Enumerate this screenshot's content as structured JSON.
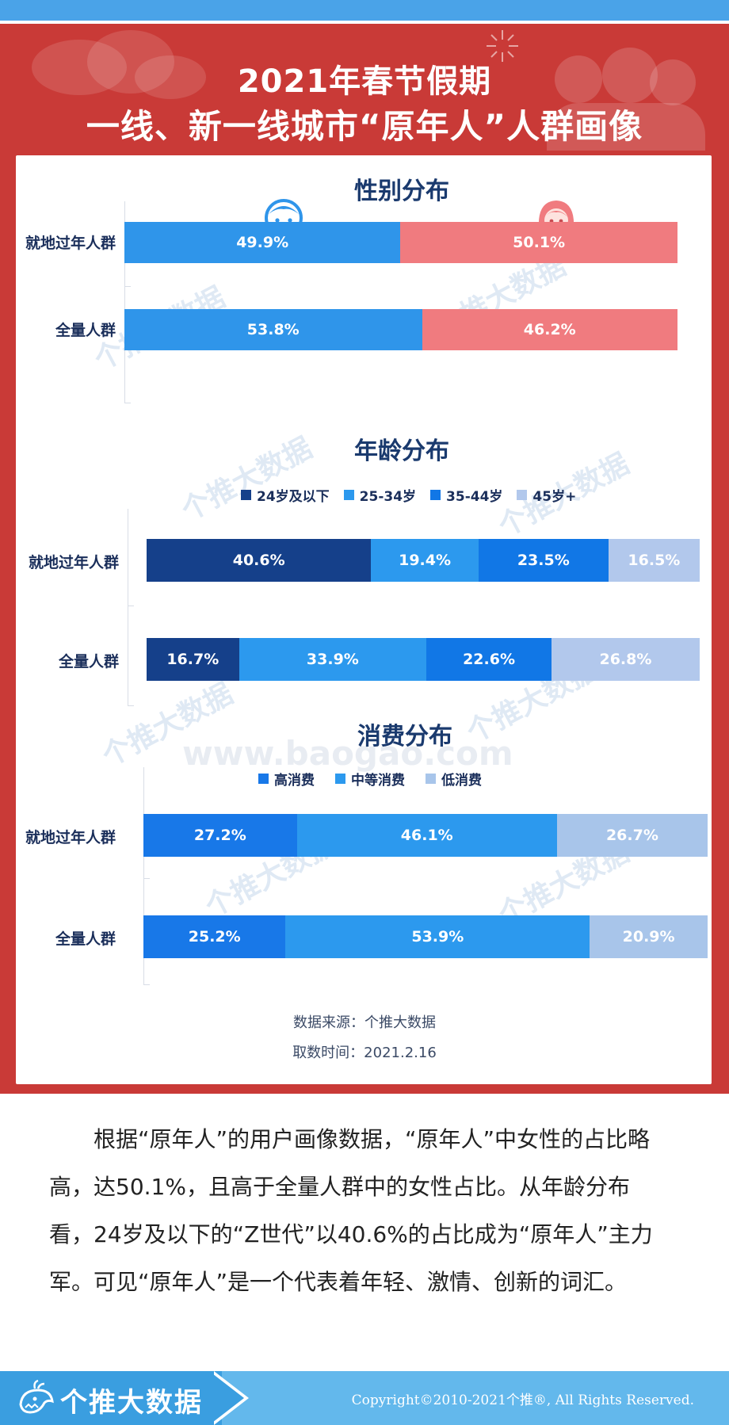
{
  "header": {
    "title_line1": "2021年春节假期",
    "title_line2": "一线、新一线城市“原年人”人群画像"
  },
  "icons": {
    "male": "boy-face-icon",
    "female": "girl-face-icon",
    "logo": "whale-logo-icon"
  },
  "colors": {
    "banner_red": "#c93a37",
    "male_blue": "#2f95ea",
    "female_pink": "#f07b7f",
    "age_24": "#15408a",
    "age_25_34": "#2c99ee",
    "age_35_44": "#1177e6",
    "age_45": "#b2c8ec",
    "cons_high": "#1878e8",
    "cons_mid": "#2c99ee",
    "cons_low": "#a8c5ea"
  },
  "chart_data": [
    {
      "type": "bar",
      "stacked": true,
      "orientation": "horizontal",
      "title": "性别分布",
      "categories": [
        "就地过年人群",
        "全量人群"
      ],
      "series": [
        {
          "key": "male",
          "values": [
            49.9,
            53.8
          ]
        },
        {
          "key": "female",
          "values": [
            50.1,
            46.2
          ]
        }
      ]
    },
    {
      "type": "bar",
      "stacked": true,
      "orientation": "horizontal",
      "title": "年龄分布",
      "legend": "top",
      "categories": [
        "就地过年人群",
        "全量人群"
      ],
      "series": [
        {
          "name": "24岁及以下",
          "values": [
            40.6,
            16.7
          ]
        },
        {
          "name": "25-34岁",
          "values": [
            19.4,
            33.9
          ]
        },
        {
          "name": "35-44岁",
          "values": [
            23.5,
            22.6
          ]
        },
        {
          "name": "45岁+",
          "values": [
            16.5,
            26.8
          ]
        }
      ]
    },
    {
      "type": "bar",
      "stacked": true,
      "orientation": "horizontal",
      "title": "消费分布",
      "legend": "top",
      "categories": [
        "就地过年人群",
        "全量人群"
      ],
      "series": [
        {
          "name": "高消费",
          "values": [
            27.2,
            25.2
          ]
        },
        {
          "name": "中等消费",
          "values": [
            46.1,
            53.9
          ]
        },
        {
          "name": "低消费",
          "values": [
            26.7,
            20.9
          ]
        }
      ]
    }
  ],
  "source": {
    "line1": "数据来源：个推大数据",
    "line2": "取数时间：2021.2.16"
  },
  "watermarks": {
    "brand": "个推大数据",
    "url": "www.baogao.com"
  },
  "paragraph": "根据“原年人”的用户画像数据，“原年人”中女性的占比略高，达50.1%，且高于全量人群中的女性占比。从年龄分布看，24岁及以下的“Z世代”以40.6%的占比成为“原年人”主力军。可见“原年人”是一个代表着年轻、激情、创新的词汇。",
  "footer": {
    "logo_text": "个推大数据",
    "copyright": "Copyright©2010-2021个推®, All Rights Reserved."
  }
}
